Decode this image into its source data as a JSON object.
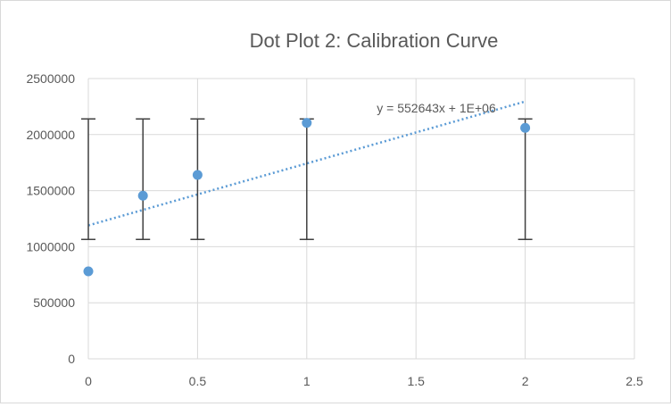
{
  "chart_data": {
    "type": "scatter",
    "title": "Dot Plot 2: Calibration Curve",
    "xlabel": "",
    "ylabel": "",
    "xlim": [
      0,
      2.5
    ],
    "ylim": [
      0,
      2500000
    ],
    "x_ticks": [
      0,
      0.5,
      1,
      1.5,
      2,
      2.5
    ],
    "x_tick_labels": [
      "0",
      "0.5",
      "1",
      "1.5",
      "2",
      "2.5"
    ],
    "y_ticks": [
      0,
      500000,
      1000000,
      1500000,
      2000000,
      2500000
    ],
    "y_tick_labels": [
      "0",
      "500000",
      "1000000",
      "1500000",
      "2000000",
      "2500000"
    ],
    "grid": true,
    "points": [
      {
        "x": 0,
        "y": 780000
      },
      {
        "x": 0.25,
        "y": 1455000
      },
      {
        "x": 0.5,
        "y": 1640000
      },
      {
        "x": 1,
        "y": 2105000
      },
      {
        "x": 2,
        "y": 2060000
      }
    ],
    "error_bars": [
      {
        "x": 0,
        "low": 1065000,
        "high": 2140000
      },
      {
        "x": 0.25,
        "low": 1065000,
        "high": 2140000
      },
      {
        "x": 0.5,
        "low": 1065000,
        "high": 2140000
      },
      {
        "x": 1,
        "low": 1065000,
        "high": 2140000
      },
      {
        "x": 2,
        "low": 1065000,
        "high": 2140000
      }
    ],
    "trendline": {
      "slope": 552643,
      "intercept": 1190000,
      "x_range": [
        0,
        2
      ],
      "style": "dotted",
      "equation": "y = 552643x + 1E+06"
    },
    "colors": {
      "points": "#5b9bd5",
      "trendline": "#5b9bd5",
      "error_bars": "#404040",
      "grid": "#d9d9d9"
    }
  }
}
